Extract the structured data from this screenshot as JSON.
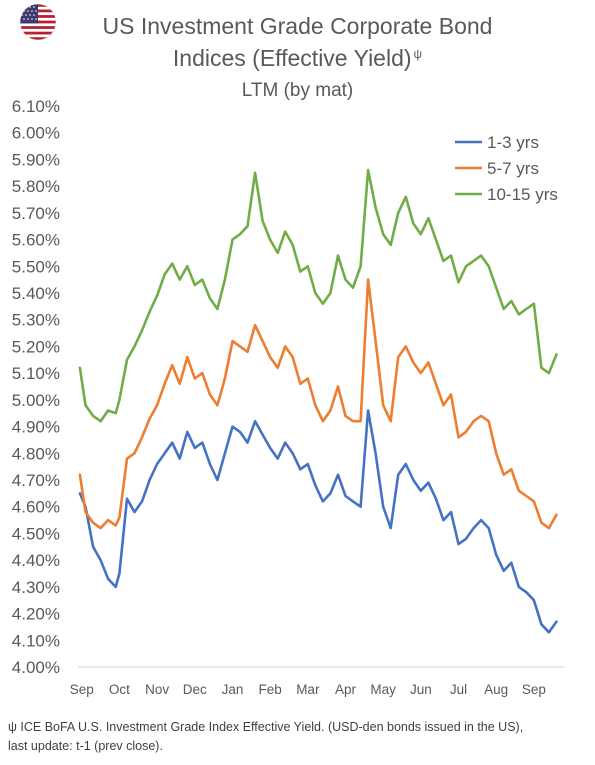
{
  "header": {
    "title_line1": "US Investment Grade Corporate Bond",
    "title_line2": "Indices (Effective Yield)",
    "title_mark": "ψ",
    "subtitle": "LTM (by mat)"
  },
  "flag": {
    "icon": "us-flag-icon",
    "red": "#b22234",
    "blue": "#3c3b6e"
  },
  "footnote": {
    "line1": "ψ ICE BoFA U.S. Investment Grade Index Effective Yield. (USD-den bonds issued in the US),",
    "line2": "last update: t-1 (prev close)."
  },
  "chart_data": {
    "type": "line",
    "title": "US Investment Grade Corporate Bond Indices (Effective Yield)",
    "subtitle": "LTM (by mat)",
    "xlabel": "",
    "ylabel": "",
    "x_tick_labels": [
      "Sep",
      "Oct",
      "Nov",
      "Dec",
      "Jan",
      "Feb",
      "Mar",
      "Apr",
      "May",
      "Jun",
      "Jul",
      "Aug",
      "Sep"
    ],
    "y_ticks": [
      "4.00%",
      "4.10%",
      "4.20%",
      "4.30%",
      "4.40%",
      "4.50%",
      "4.60%",
      "4.70%",
      "4.80%",
      "4.90%",
      "5.00%",
      "5.10%",
      "5.20%",
      "5.30%",
      "5.40%",
      "5.50%",
      "5.60%",
      "5.70%",
      "5.80%",
      "5.90%",
      "6.00%",
      "6.10%"
    ],
    "ylim": [
      4.0,
      6.1
    ],
    "grid": false,
    "legend_position": "top-right",
    "x_months": [
      -0.05,
      0.1,
      0.3,
      0.5,
      0.7,
      0.9,
      1.0,
      1.2,
      1.4,
      1.6,
      1.8,
      2.0,
      2.2,
      2.4,
      2.6,
      2.8,
      3.0,
      3.2,
      3.4,
      3.6,
      3.8,
      4.0,
      4.2,
      4.4,
      4.6,
      4.8,
      5.0,
      5.2,
      5.4,
      5.6,
      5.8,
      6.0,
      6.2,
      6.4,
      6.6,
      6.8,
      7.0,
      7.2,
      7.4,
      7.6,
      7.8,
      8.0,
      8.2,
      8.4,
      8.6,
      8.8,
      9.0,
      9.2,
      9.4,
      9.6,
      9.8,
      10.0,
      10.2,
      10.4,
      10.6,
      10.8,
      11.0,
      11.2,
      11.4,
      11.6,
      11.8,
      12.0,
      12.2,
      12.4,
      12.6
    ],
    "series": [
      {
        "name": "1-3 yrs",
        "color": "#4472c4",
        "values": [
          4.65,
          4.6,
          4.45,
          4.4,
          4.33,
          4.3,
          4.35,
          4.63,
          4.58,
          4.62,
          4.7,
          4.76,
          4.8,
          4.84,
          4.78,
          4.88,
          4.82,
          4.84,
          4.76,
          4.7,
          4.8,
          4.9,
          4.88,
          4.84,
          4.92,
          4.87,
          4.82,
          4.78,
          4.84,
          4.8,
          4.74,
          4.76,
          4.68,
          4.62,
          4.65,
          4.72,
          4.64,
          4.62,
          4.6,
          4.96,
          4.8,
          4.6,
          4.52,
          4.72,
          4.76,
          4.7,
          4.66,
          4.69,
          4.63,
          4.55,
          4.58,
          4.46,
          4.48,
          4.52,
          4.55,
          4.52,
          4.42,
          4.36,
          4.39,
          4.3,
          4.28,
          4.25,
          4.16,
          4.13,
          4.17
        ]
      },
      {
        "name": "5-7 yrs",
        "color": "#ed7d31",
        "values": [
          4.72,
          4.58,
          4.54,
          4.52,
          4.55,
          4.53,
          4.56,
          4.78,
          4.8,
          4.86,
          4.93,
          4.98,
          5.06,
          5.13,
          5.06,
          5.16,
          5.08,
          5.1,
          5.02,
          4.98,
          5.08,
          5.22,
          5.2,
          5.18,
          5.28,
          5.22,
          5.16,
          5.12,
          5.2,
          5.16,
          5.06,
          5.08,
          4.98,
          4.92,
          4.96,
          5.05,
          4.94,
          4.92,
          4.92,
          5.45,
          5.22,
          4.98,
          4.92,
          5.16,
          5.2,
          5.14,
          5.1,
          5.14,
          5.06,
          4.98,
          5.02,
          4.86,
          4.88,
          4.92,
          4.94,
          4.92,
          4.8,
          4.72,
          4.74,
          4.66,
          4.64,
          4.62,
          4.54,
          4.52,
          4.57
        ]
      },
      {
        "name": "10-15 yrs",
        "color": "#70ad47",
        "values": [
          5.12,
          4.98,
          4.94,
          4.92,
          4.96,
          4.95,
          5.0,
          5.15,
          5.2,
          5.26,
          5.33,
          5.39,
          5.47,
          5.51,
          5.45,
          5.5,
          5.43,
          5.45,
          5.38,
          5.34,
          5.45,
          5.6,
          5.62,
          5.65,
          5.85,
          5.67,
          5.6,
          5.55,
          5.63,
          5.58,
          5.48,
          5.5,
          5.4,
          5.36,
          5.4,
          5.54,
          5.45,
          5.42,
          5.5,
          5.86,
          5.72,
          5.62,
          5.58,
          5.7,
          5.76,
          5.66,
          5.62,
          5.68,
          5.6,
          5.52,
          5.54,
          5.44,
          5.5,
          5.52,
          5.54,
          5.5,
          5.42,
          5.34,
          5.37,
          5.32,
          5.34,
          5.36,
          5.12,
          5.1,
          5.17
        ]
      }
    ]
  }
}
